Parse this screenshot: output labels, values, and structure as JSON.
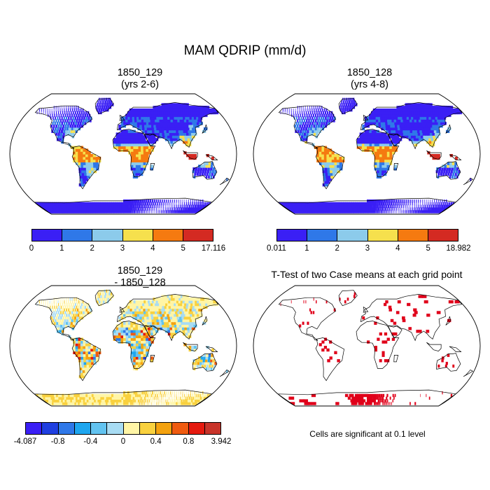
{
  "title": "MAM QDRIP (mm/d)",
  "panels": {
    "top_left": {
      "title1": "1850_129",
      "title2": "(yrs 2-6)"
    },
    "top_right": {
      "title1": "1850_128",
      "title2": "(yrs 4-8)"
    },
    "bottom_left": {
      "title1": "1850_129",
      "title2": "- 1850_128"
    },
    "bottom_right": {
      "title1": "T-Test of two Case means at each grid point",
      "note": "Cells are significant at 0.1 level"
    }
  },
  "colorbars": {
    "case1": {
      "labels": [
        "0",
        "1",
        "2",
        "3",
        "4",
        "5",
        "17.116"
      ],
      "colors": [
        "#3a1ff5",
        "#2f78e8",
        "#8ccbeb",
        "#f6e04d",
        "#f57a10",
        "#d42a22"
      ]
    },
    "case2": {
      "labels": [
        "0.011",
        "1",
        "2",
        "3",
        "4",
        "5",
        "18.982"
      ],
      "colors": [
        "#3a1ff5",
        "#2f78e8",
        "#8ccbeb",
        "#f6e04d",
        "#f57a10",
        "#d42a22"
      ]
    },
    "diff": {
      "labels": [
        "-4.087",
        "-0.8",
        "-0.4",
        "0",
        "0.4",
        "0.8",
        "3.942"
      ],
      "colors": [
        "#3a1ff5",
        "#1f3fe0",
        "#2f78e8",
        "#1ea6ef",
        "#62c3f0",
        "#a8dcf3",
        "#fff5a6",
        "#f9d13e",
        "#f4a20f",
        "#ef5b10",
        "#e51a0f",
        "#c8342a"
      ]
    }
  },
  "map_colors": {
    "ocean": "#ffffff",
    "coast": "#000000",
    "significant": "#e0001a"
  }
}
